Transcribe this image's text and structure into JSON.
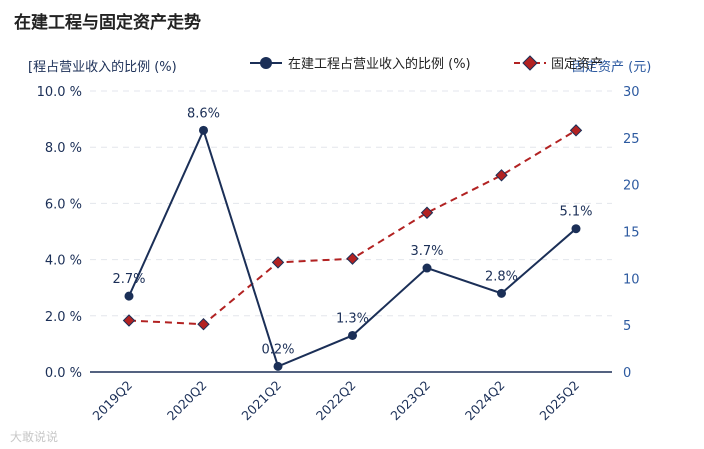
{
  "chart_data": {
    "type": "line",
    "title": "在建工程与固定资产走势",
    "categories": [
      "2019Q2",
      "2020Q2",
      "2021Q2",
      "2022Q2",
      "2023Q2",
      "2024Q2",
      "2025Q2"
    ],
    "y_left": {
      "label": "[程占营业收入的比例 (%)",
      "ylim": [
        0,
        10
      ],
      "ticks": [
        "0.0 %",
        "2.0 %",
        "4.0 %",
        "6.0 %",
        "8.0 %",
        "10.0 %"
      ],
      "tick_values": [
        0,
        2,
        4,
        6,
        8,
        10
      ]
    },
    "y_right": {
      "label": "固定资产 (元)",
      "ylim": [
        0,
        30
      ],
      "ticks": [
        "0",
        "5",
        "10",
        "15",
        "20",
        "25",
        "30"
      ],
      "tick_values": [
        0,
        5,
        10,
        15,
        20,
        25,
        30
      ]
    },
    "series": [
      {
        "name": "在建工程占营业收入的比例 (%)",
        "axis": "left",
        "color": "#1b2f57",
        "style": "solid",
        "marker": "circle",
        "values": [
          2.7,
          8.6,
          0.2,
          1.3,
          3.7,
          2.8,
          5.1
        ],
        "labels": [
          "2.7%",
          "8.6%",
          "0.2%",
          "1.3%",
          "3.7%",
          "2.8%",
          "5.1%"
        ]
      },
      {
        "name": "固定资产",
        "axis": "right",
        "color": "#b22222",
        "style": "dashed",
        "marker": "diamond",
        "values": [
          5.5,
          5.1,
          11.7,
          12.1,
          17.0,
          21.0,
          25.8
        ]
      }
    ],
    "grid": true,
    "legend_position": "top"
  },
  "watermark": "大敢说说"
}
